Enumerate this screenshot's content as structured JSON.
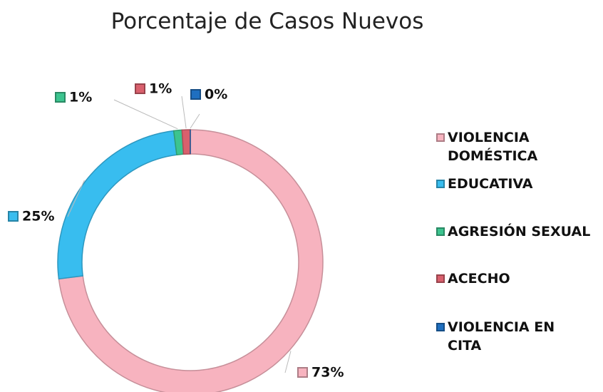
{
  "chart_data": {
    "type": "donut",
    "title": "Porcentaje de Casos Nuevos",
    "categories": [
      "VIOLENCIA DOMÉSTICA",
      "EDUCATIVA",
      "AGRESIÓN SEXUAL",
      "ACECHO",
      "VIOLENCIA EN CITA"
    ],
    "values": [
      73,
      25,
      1,
      1,
      0
    ],
    "value_labels": [
      "73%",
      "25%",
      "1%",
      "1%",
      "0%"
    ],
    "colors": [
      "#f7b3bf",
      "#38bdef",
      "#3cc48f",
      "#d9606d",
      "#1f6fc0"
    ],
    "legend": "right"
  }
}
